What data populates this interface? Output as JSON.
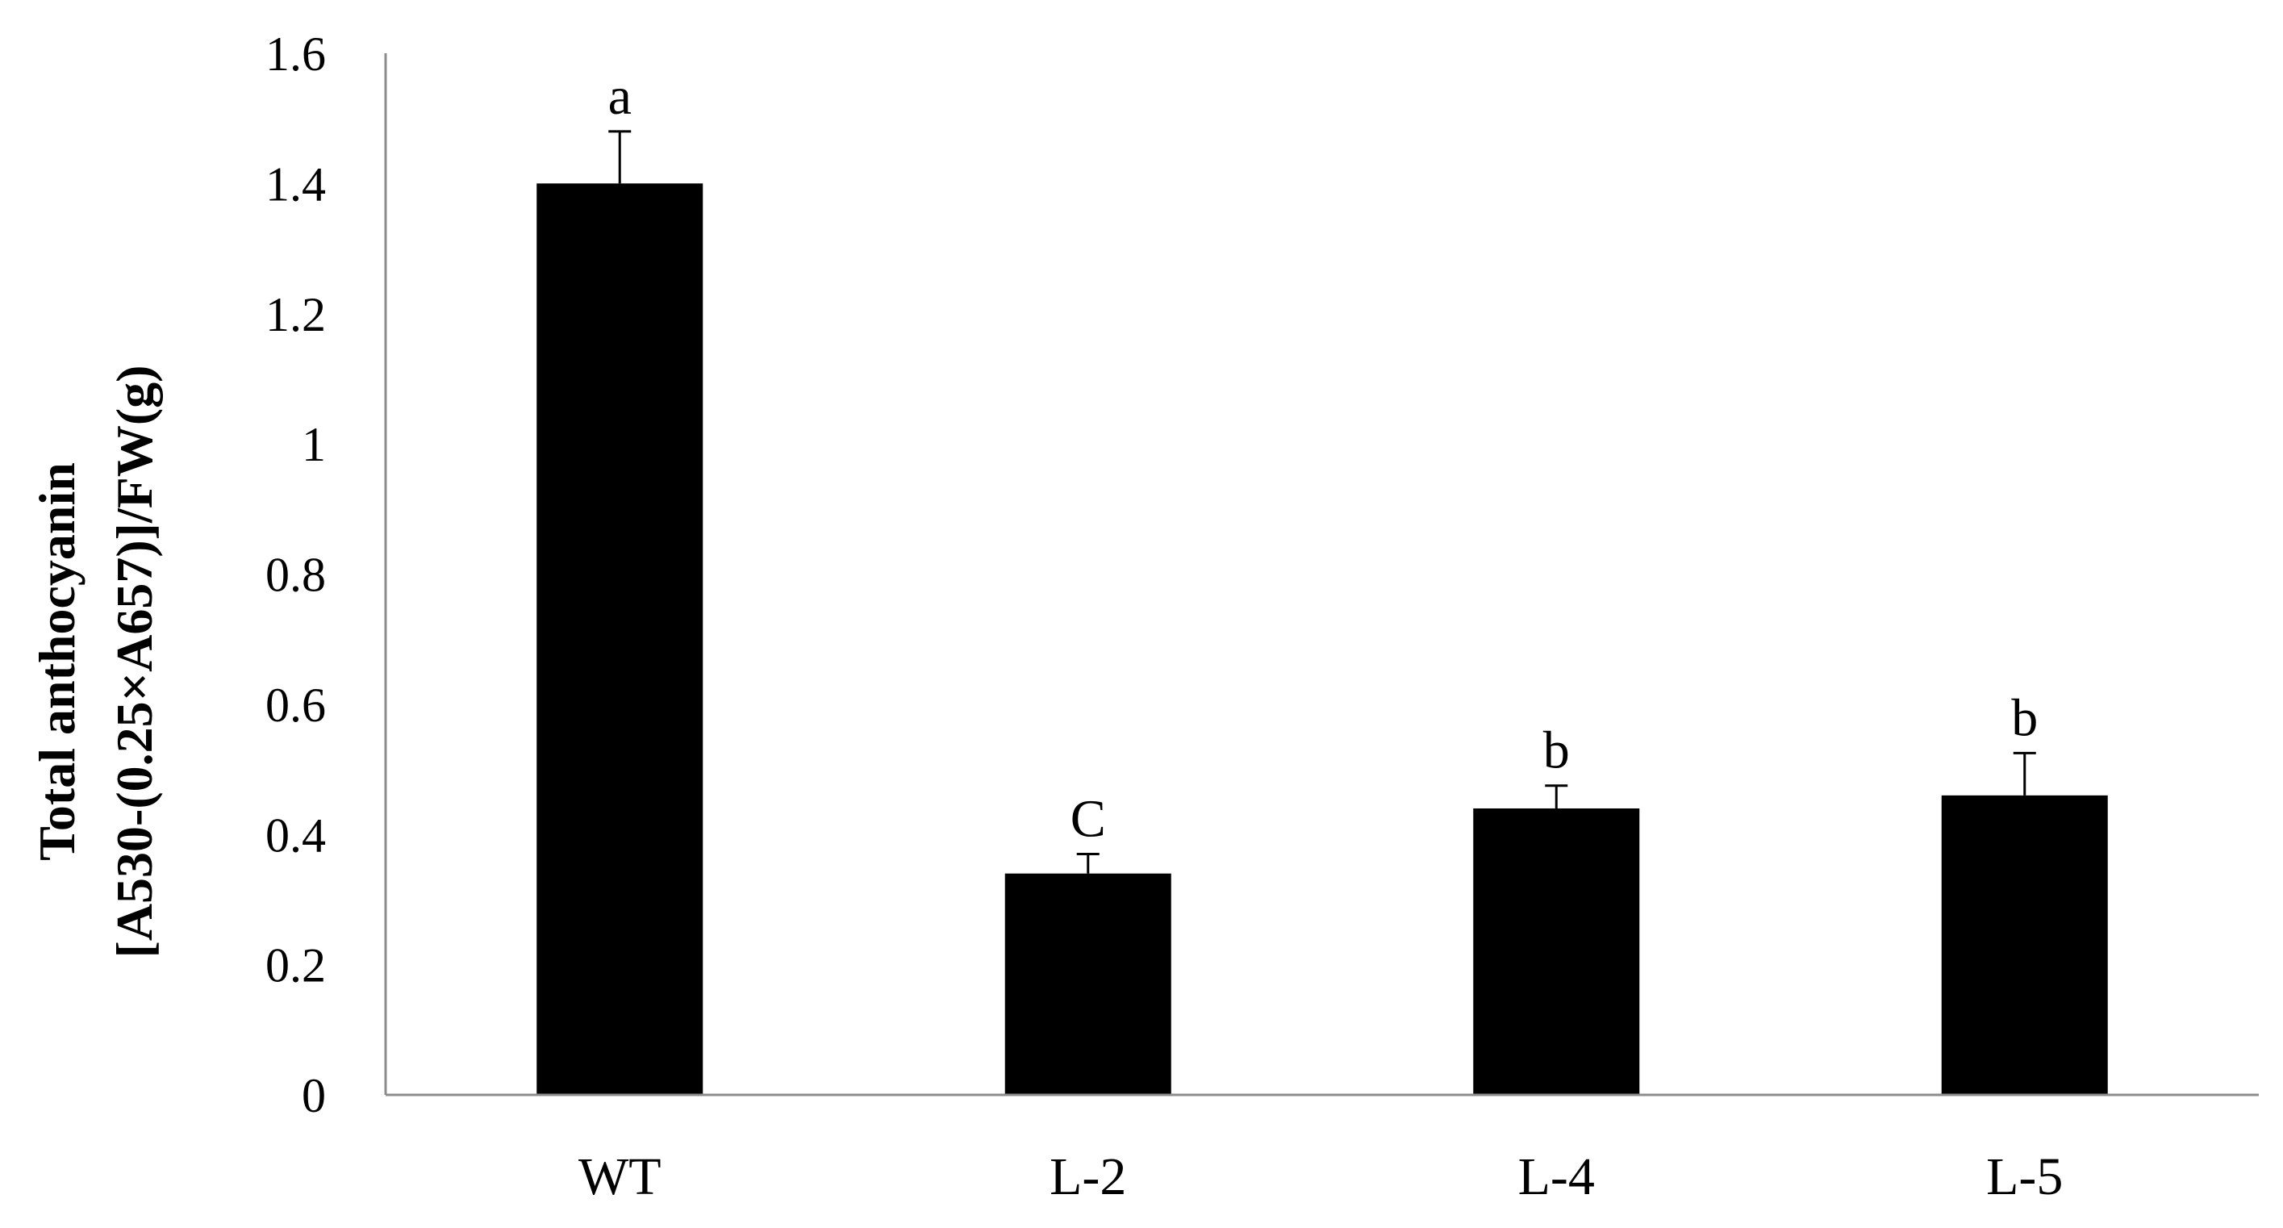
{
  "chart_data": {
    "type": "bar",
    "title": "",
    "xlabel": "",
    "ylabel_lines": [
      "Total anthocyanin",
      "[A530-(0.25×A657)]/FW(g)"
    ],
    "ylim": [
      0,
      1.6
    ],
    "yticks": [
      "0",
      "0.2",
      "0.4",
      "0.6",
      "0.8",
      "1",
      "1.2",
      "1.4",
      "1.6"
    ],
    "categories": [
      "WT",
      "L-2",
      "L-4",
      "L-5"
    ],
    "values": [
      1.4,
      0.34,
      0.44,
      0.46
    ],
    "errors": [
      0.08,
      0.03,
      0.035,
      0.065
    ],
    "significance": [
      "a",
      "C",
      "b",
      "b"
    ],
    "bar_color": "#000000",
    "grid": false,
    "legend": "none"
  }
}
